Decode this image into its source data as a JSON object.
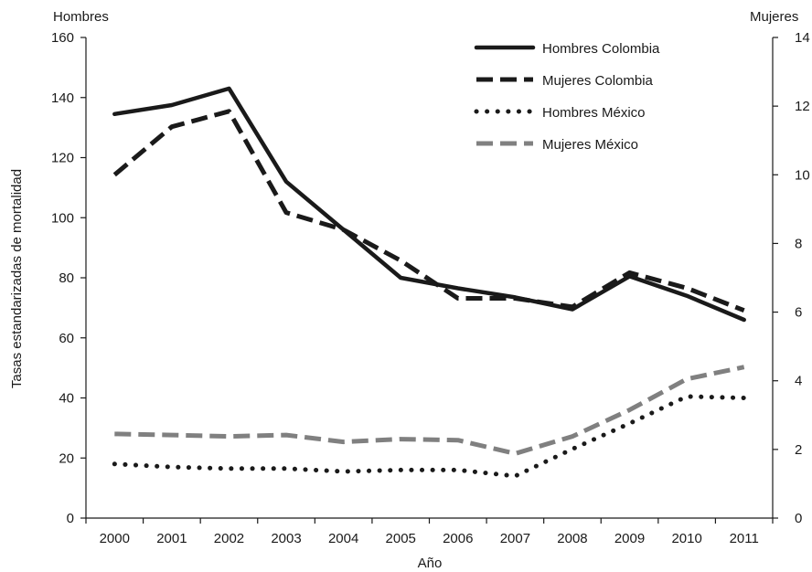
{
  "chart_data": {
    "type": "line",
    "xlabel": "Año",
    "ylabel": "Tasas estandarizadas de mortalidad",
    "y_left_label": "Hombres",
    "y_right_label": "Mujeres",
    "x": [
      "2000",
      "2001",
      "2002",
      "2003",
      "2004",
      "2005",
      "2006",
      "2007",
      "2008",
      "2009",
      "2010",
      "2011"
    ],
    "ylim_left": [
      0,
      160
    ],
    "yticks_left": [
      0,
      20,
      40,
      60,
      80,
      100,
      120,
      140,
      160
    ],
    "ylim_right": [
      0,
      14
    ],
    "yticks_right": [
      0,
      2,
      4,
      6,
      8,
      10,
      12,
      14
    ],
    "grid": false,
    "legend_position": "top-right",
    "series": [
      {
        "name": "Hombres Colombia",
        "axis": "left",
        "style": "solid",
        "color": "#1a1a1a",
        "values": [
          134.5,
          137.5,
          143,
          112,
          96,
          80,
          76.5,
          73.5,
          69.5,
          80.5,
          74,
          66
        ]
      },
      {
        "name": "Mujeres Colombia",
        "axis": "right",
        "style": "dashed",
        "color": "#1a1a1a",
        "values": [
          10.0,
          11.4,
          11.85,
          8.9,
          8.4,
          7.5,
          6.4,
          6.4,
          6.15,
          7.15,
          6.7,
          6.05
        ]
      },
      {
        "name": "Hombres México",
        "axis": "left",
        "style": "dotted",
        "color": "#1a1a1a",
        "values": [
          18,
          17,
          16.5,
          16.5,
          15.5,
          16,
          16,
          14,
          23,
          31.5,
          40.5,
          40
        ]
      },
      {
        "name": "Mujeres México",
        "axis": "right",
        "style": "dashed",
        "color": "#808080",
        "values": [
          2.45,
          2.42,
          2.38,
          2.42,
          2.22,
          2.3,
          2.27,
          1.88,
          2.38,
          3.15,
          4.05,
          4.4
        ]
      }
    ]
  }
}
